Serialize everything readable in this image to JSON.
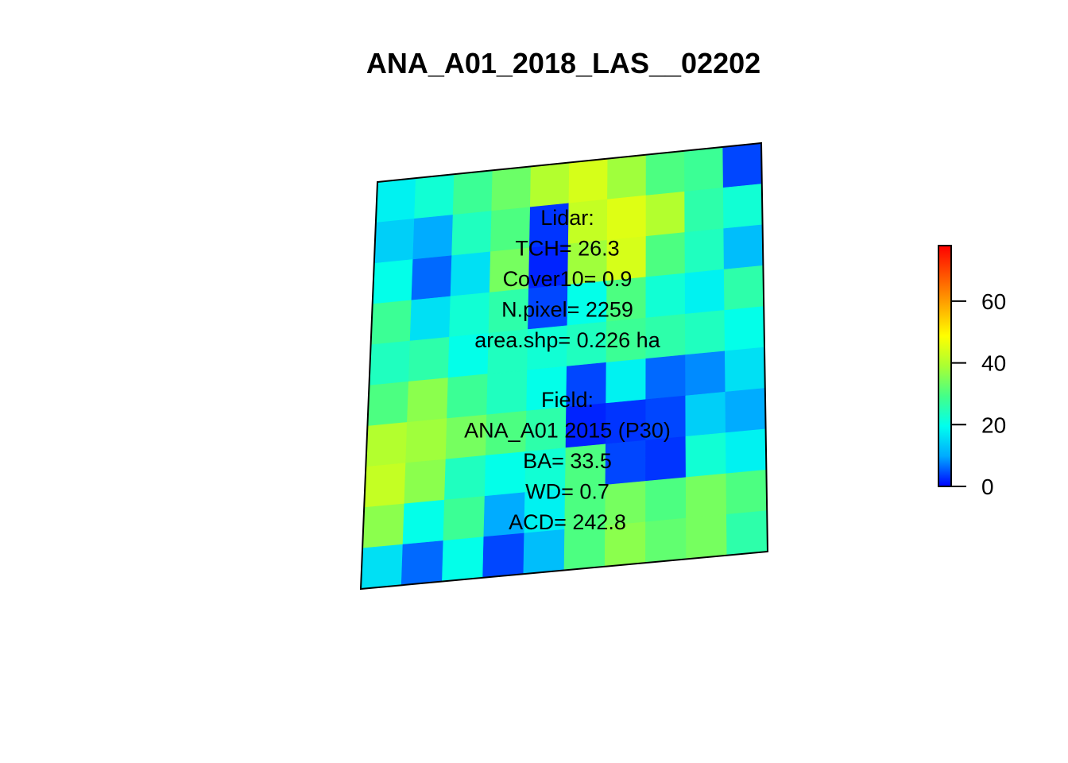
{
  "chart_data": {
    "type": "heatmap",
    "title": "ANA_A01_2018_LAS__02202",
    "colorbar": {
      "min": 0,
      "max": 78,
      "ticks": [
        0,
        20,
        40,
        60
      ],
      "tick_labels": [
        "0",
        "20",
        "40",
        "60"
      ],
      "palette": [
        "#0000ff",
        "#00aaff",
        "#00ffee",
        "#44ff88",
        "#aaff33",
        "#ffff00",
        "#ffaa00",
        "#ff5500",
        "#ff0000"
      ]
    },
    "annotations": {
      "lidar": [
        "Lidar:",
        "TCH= 26.3",
        "Cover10= 0.9",
        "N.pixel= 2259",
        "area.shp= 0.226 ha"
      ],
      "field": [
        "Field:",
        "ANA_A01 2015 (P30)",
        "BA= 33.5",
        "WD= 0.7",
        "ACD= 242.8"
      ]
    },
    "grid": {
      "rows": 10,
      "cols": 10,
      "values": [
        [
          18,
          22,
          28,
          33,
          40,
          44,
          38,
          30,
          28,
          4
        ],
        [
          14,
          10,
          24,
          30,
          3,
          42,
          45,
          40,
          26,
          22
        ],
        [
          20,
          6,
          16,
          34,
          2,
          38,
          44,
          30,
          24,
          12
        ],
        [
          28,
          16,
          22,
          26,
          4,
          20,
          30,
          22,
          18,
          26
        ],
        [
          24,
          26,
          20,
          24,
          22,
          24,
          28,
          26,
          24,
          20
        ],
        [
          30,
          36,
          28,
          24,
          20,
          4,
          18,
          6,
          8,
          16
        ],
        [
          40,
          38,
          34,
          30,
          26,
          2,
          3,
          4,
          14,
          10
        ],
        [
          42,
          36,
          24,
          20,
          22,
          30,
          4,
          3,
          22,
          18
        ],
        [
          36,
          20,
          28,
          10,
          18,
          30,
          34,
          30,
          34,
          30
        ],
        [
          16,
          6,
          20,
          4,
          12,
          30,
          36,
          32,
          34,
          26
        ]
      ]
    }
  }
}
